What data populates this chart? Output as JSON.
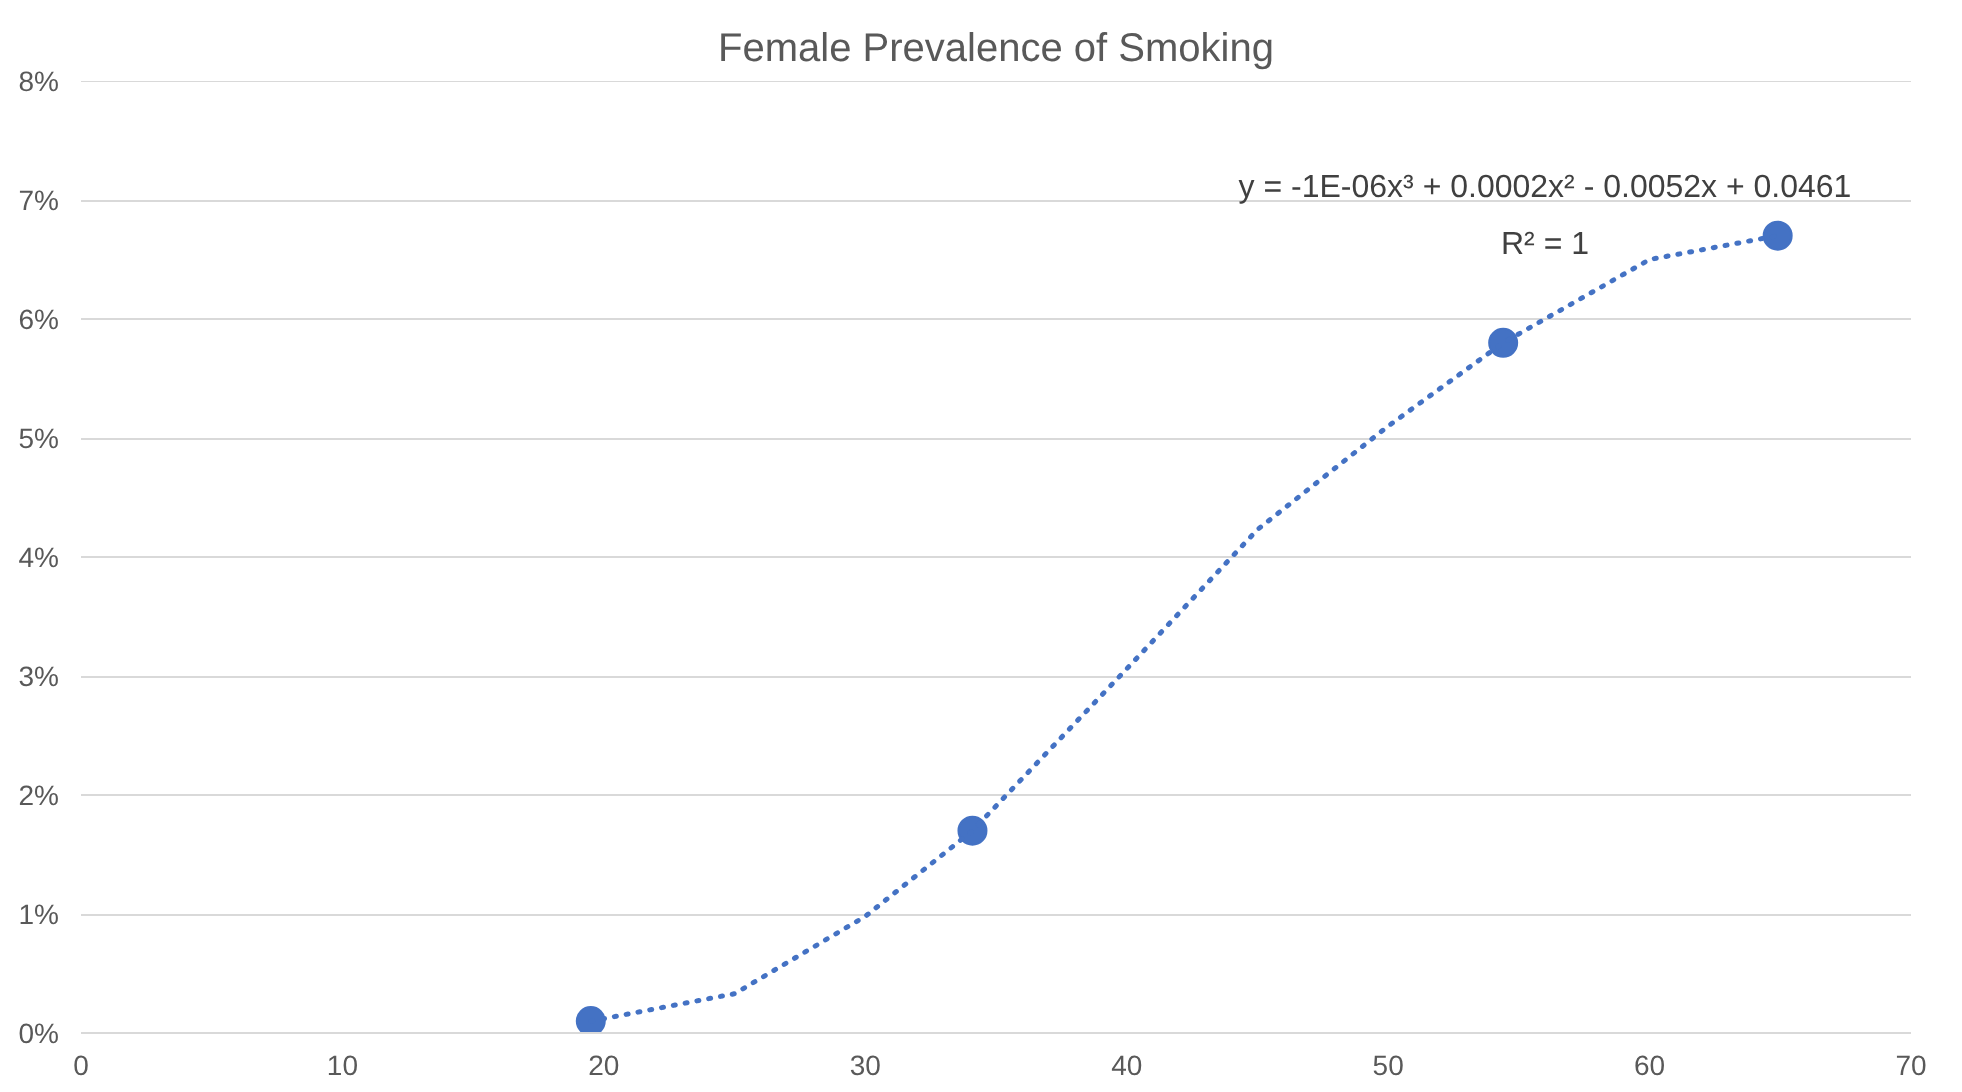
{
  "chart_data": {
    "type": "scatter",
    "title": "Female Prevalence of Smoking",
    "x": [
      19.5,
      34.1,
      54.4,
      64.9
    ],
    "series": [
      {
        "color": "#4472c4",
        "values": [
          0.1,
          1.7,
          5.8,
          6.7
        ],
        "marker": "circle"
      },
      {
        "type": "line",
        "color": "#4472c4",
        "line_style": "dotted",
        "marker": "none",
        "x": [
          19.5,
          25,
          30,
          34.1,
          40,
          45,
          50,
          54.4,
          60,
          64.9
        ],
        "values": [
          0.1,
          0.33,
          0.98,
          1.7,
          3.06,
          4.23,
          5.1,
          5.8,
          6.5,
          6.7
        ]
      }
    ],
    "annotations": [
      "y = -1E-06x³ + 0.0002x² - 0.0052x + 0.0461",
      "R² = 1"
    ],
    "xlim": [
      0,
      70
    ],
    "xticks": [
      0,
      10,
      20,
      30,
      40,
      50,
      60,
      70
    ],
    "ylim": [
      0,
      8
    ],
    "yticks": [
      {
        "value": 0,
        "label": "0%"
      },
      {
        "value": 1,
        "label": "1%"
      },
      {
        "value": 2,
        "label": "2%"
      },
      {
        "value": 3,
        "label": "3%"
      },
      {
        "value": 4,
        "label": "4%"
      },
      {
        "value": 5,
        "label": "5%"
      },
      {
        "value": 6,
        "label": "6%"
      },
      {
        "value": 7,
        "label": "7%"
      },
      {
        "value": 8,
        "label": "8%"
      }
    ],
    "grid": "y"
  }
}
